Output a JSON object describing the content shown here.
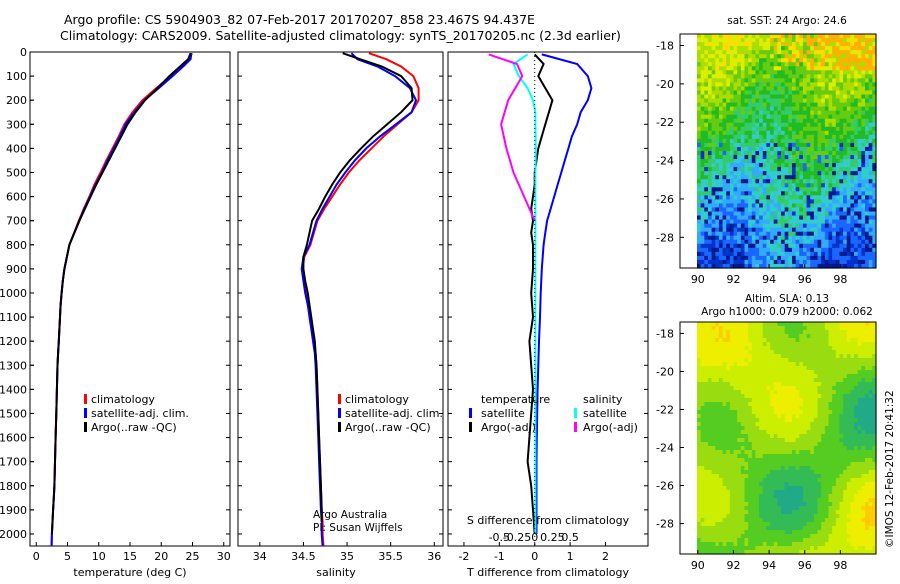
{
  "header": {
    "line1": "Argo profile: CS 5904903_82 07-Feb-2017 20170207_858 23.467S 94.437E",
    "line2": "Climatology: CARS2009. Satellite-adjusted climatology: synTS_20170205.nc (2.3d earlier)"
  },
  "colors": {
    "climatology": "#ff0000",
    "satellite_adj": "#0000ff",
    "argo": "#000000",
    "salinity_satellite": "#00ffff",
    "salinity_argo": "#ff00ff"
  },
  "chart_data": [
    {
      "type": "line",
      "panel": "temperature",
      "xlabel": "temperature (deg C)",
      "ylabel": "",
      "xlim": [
        -1,
        31
      ],
      "ylim": [
        2050,
        0
      ],
      "xticks": [
        "0",
        "5",
        "10",
        "15",
        "20",
        "25",
        "30"
      ],
      "yticks": [
        "0",
        "100",
        "200",
        "300",
        "400",
        "500",
        "600",
        "700",
        "800",
        "900",
        "1000",
        "1100",
        "1200",
        "1300",
        "1400",
        "1500",
        "1600",
        "1700",
        "1800",
        "1900",
        "2000"
      ],
      "legend": [
        "climatology",
        "satellite-adj. clim.",
        "Argo(..raw -QC)"
      ],
      "series": [
        {
          "name": "climatology",
          "color": "#ff0000",
          "x": [
            24.9,
            24.5,
            23.2,
            21.5,
            19.2,
            17,
            15.4,
            14.1,
            13.2,
            12.2,
            11.2,
            10.3,
            9.3,
            8.5,
            7.6,
            6.8,
            5.3,
            4.9,
            4.5,
            4.25,
            4.05,
            3.9,
            3.8,
            3.7,
            3.6,
            3.5,
            3.4,
            3.3,
            3.2,
            3.1,
            3.0,
            2.9,
            2.8,
            2.7,
            2.6,
            2.5,
            2.45
          ],
          "y": [
            5,
            30,
            60,
            100,
            150,
            200,
            250,
            300,
            350,
            400,
            450,
            500,
            550,
            600,
            650,
            700,
            800,
            850,
            900,
            950,
            1000,
            1050,
            1100,
            1150,
            1200,
            1250,
            1300,
            1400,
            1500,
            1600,
            1700,
            1800,
            1850,
            1900,
            1950,
            2000,
            2050
          ]
        },
        {
          "name": "satellite-adj. clim.",
          "color": "#0000ff",
          "x": [
            24.8,
            24.7,
            23.5,
            21.8,
            19.6,
            17.3,
            15.7,
            14.3,
            13.4,
            12.4,
            11.4,
            10.5,
            9.5,
            8.6,
            7.7,
            6.9,
            5.3,
            4.9,
            4.5,
            4.25,
            4.05,
            3.9,
            3.8,
            3.7,
            3.6,
            3.5,
            3.4,
            3.3,
            3.2,
            3.1,
            3.0,
            2.9,
            2.8,
            2.7,
            2.6,
            2.5,
            2.45
          ],
          "y": [
            5,
            30,
            60,
            100,
            150,
            200,
            250,
            300,
            350,
            400,
            450,
            500,
            550,
            600,
            650,
            700,
            800,
            850,
            900,
            950,
            1000,
            1050,
            1100,
            1150,
            1200,
            1250,
            1300,
            1400,
            1500,
            1600,
            1700,
            1800,
            1850,
            1900,
            1950,
            2000,
            2050
          ]
        },
        {
          "name": "Argo(..raw -QC)",
          "color": "#000000",
          "x": [
            24.7,
            24.3,
            23.0,
            21.3,
            19.4,
            17.4,
            15.9,
            14.6,
            13.6,
            12.6,
            11.6,
            10.6,
            9.6,
            8.7,
            7.8,
            6.9,
            5.3,
            4.9,
            4.5,
            4.25,
            4.05,
            3.9,
            3.8,
            3.7,
            3.6,
            3.5,
            3.4,
            3.3,
            3.2,
            3.1,
            3.0,
            2.9,
            2.8,
            2.7,
            2.6,
            2.5
          ],
          "y": [
            5,
            30,
            60,
            100,
            150,
            200,
            250,
            300,
            350,
            400,
            450,
            500,
            550,
            600,
            650,
            700,
            800,
            850,
            900,
            950,
            1000,
            1050,
            1100,
            1150,
            1200,
            1250,
            1300,
            1400,
            1500,
            1600,
            1700,
            1800,
            1850,
            1900,
            1950,
            2000
          ]
        }
      ]
    },
    {
      "type": "line",
      "panel": "salinity",
      "xlabel": "salinity",
      "ylabel": "",
      "xlim": [
        33.75,
        36.1
      ],
      "ylim": [
        2050,
        0
      ],
      "xticks": [
        "34",
        "34.5",
        "35",
        "35.5",
        "36"
      ],
      "legend": [
        "climatology",
        "satellite-adj. clim.",
        "Argo(..raw -QC)"
      ],
      "series": [
        {
          "name": "climatology",
          "color": "#ff0000",
          "x": [
            35.25,
            35.45,
            35.62,
            35.76,
            35.82,
            35.82,
            35.74,
            35.58,
            35.42,
            35.28,
            35.14,
            35.02,
            34.92,
            34.83,
            34.74,
            34.66,
            34.58,
            34.51,
            34.49,
            34.51,
            34.53,
            34.56,
            34.58,
            34.6,
            34.62,
            34.64,
            34.65,
            34.66,
            34.67,
            34.68,
            34.69,
            34.7,
            34.71,
            34.72,
            34.72,
            34.73
          ],
          "y": [
            5,
            30,
            60,
            100,
            150,
            200,
            250,
            300,
            350,
            400,
            450,
            500,
            550,
            600,
            650,
            700,
            800,
            850,
            900,
            950,
            1000,
            1050,
            1100,
            1150,
            1200,
            1250,
            1300,
            1400,
            1500,
            1600,
            1700,
            1800,
            1900,
            1950,
            2000,
            2050
          ]
        },
        {
          "name": "satellite-adj. clim.",
          "color": "#0000ff",
          "x": [
            35.05,
            35.12,
            35.35,
            35.55,
            35.72,
            35.79,
            35.74,
            35.56,
            35.38,
            35.22,
            35.09,
            34.98,
            34.88,
            34.8,
            34.72,
            34.65,
            34.57,
            34.5,
            34.48,
            34.5,
            34.52,
            34.55,
            34.57,
            34.59,
            34.61,
            34.63,
            34.64,
            34.65,
            34.66,
            34.67,
            34.68,
            34.69,
            34.7,
            34.71,
            34.71,
            34.72
          ],
          "y": [
            5,
            30,
            60,
            100,
            150,
            200,
            250,
            300,
            350,
            400,
            450,
            500,
            550,
            600,
            650,
            700,
            800,
            850,
            900,
            950,
            1000,
            1050,
            1100,
            1150,
            1200,
            1250,
            1300,
            1400,
            1500,
            1600,
            1700,
            1800,
            1900,
            1950,
            2000,
            2050
          ]
        },
        {
          "name": "Argo(..raw -QC)",
          "color": "#000000",
          "x": [
            34.95,
            35.15,
            35.4,
            35.62,
            35.74,
            35.75,
            35.62,
            35.46,
            35.3,
            35.16,
            35.03,
            34.92,
            34.83,
            34.75,
            34.68,
            34.6,
            34.54,
            34.5,
            34.5,
            34.52,
            34.55,
            34.57,
            34.59,
            34.61,
            34.63,
            34.64,
            34.65,
            34.66,
            34.67,
            34.68,
            34.69,
            34.7,
            34.71,
            34.71
          ],
          "y": [
            5,
            30,
            60,
            100,
            150,
            200,
            250,
            300,
            350,
            400,
            450,
            500,
            550,
            600,
            650,
            700,
            800,
            850,
            900,
            950,
            1000,
            1050,
            1100,
            1150,
            1200,
            1250,
            1300,
            1400,
            1500,
            1600,
            1700,
            1800,
            1900,
            1950
          ]
        }
      ]
    },
    {
      "type": "line",
      "panel": "difference",
      "xlabel": "T difference from climatology",
      "xlabel_top": "S difference from climatology",
      "ylabel": "",
      "xlim": [
        -2.45,
        3.2
      ],
      "ylim": [
        2050,
        0
      ],
      "xticks": [
        "-2",
        "-1",
        "0",
        "1",
        "2"
      ],
      "sticks": [
        "-0.5",
        "-0.25",
        "0",
        "0.25",
        "0.5"
      ],
      "legend_titles": [
        "temperature",
        "salinity"
      ],
      "legend": [
        "satellite",
        "Argo(-adj)",
        "satellite",
        "Argo(-adj)"
      ],
      "series": [
        {
          "name": "satellite",
          "color": "#0000ff",
          "x": [
            0.2,
            1.2,
            1.5,
            1.6,
            1.5,
            1.3,
            1.2,
            1.05,
            0.95,
            0.85,
            0.75,
            0.65,
            0.55,
            0.45,
            0.35,
            0.3,
            0.25,
            0.2,
            0.17,
            0.15,
            0.12,
            0.1,
            0.08,
            0.06,
            0.05,
            0.05,
            0.05,
            0.05
          ],
          "y": [
            10,
            50,
            100,
            150,
            200,
            250,
            300,
            350,
            400,
            450,
            500,
            550,
            600,
            650,
            700,
            750,
            800,
            900,
            1000,
            1100,
            1200,
            1300,
            1400,
            1600,
            1700,
            1800,
            1900,
            2000
          ]
        },
        {
          "name": "Argo(-adj)",
          "color": "#000000",
          "x": [
            0,
            0.25,
            0.1,
            0.3,
            0.5,
            0.4,
            0.3,
            0.2,
            0.1,
            0.05,
            0,
            0,
            -0.05,
            -0.1,
            -0.05,
            -0.1,
            -0.05,
            -0.05,
            -0.1,
            -0.05,
            -0.15,
            -0.1,
            -0.05,
            -0.1,
            -0.15,
            -0.2,
            -0.1,
            -0.05,
            0
          ],
          "y": [
            10,
            50,
            100,
            150,
            200,
            250,
            300,
            350,
            400,
            450,
            500,
            550,
            600,
            650,
            700,
            750,
            800,
            900,
            1000,
            1100,
            1200,
            1300,
            1400,
            1500,
            1600,
            1700,
            1800,
            1900,
            2000
          ]
        },
        {
          "name": "satellite",
          "color": "#00ffff",
          "x": [
            -0.2,
            -0.6,
            -0.45,
            -0.2,
            -0.05,
            0.02,
            0.02,
            0.03,
            0.02,
            0.02,
            0.02,
            0.02,
            0.02,
            0.02,
            0.02,
            0.02,
            0.02
          ],
          "y": [
            10,
            50,
            100,
            150,
            200,
            250,
            300,
            400,
            500,
            700,
            900,
            1100,
            1300,
            1500,
            1700,
            1900,
            2000
          ]
        },
        {
          "name": "Argo(-adj)",
          "color": "#ff00ff",
          "x": [
            -1.3,
            -0.5,
            -0.35,
            -0.75,
            -0.95,
            -0.8,
            -0.6,
            -0.45,
            -0.3,
            -0.15,
            0
          ],
          "y": [
            10,
            50,
            100,
            200,
            300,
            400,
            500,
            550,
            600,
            650,
            700
          ]
        }
      ]
    }
  ],
  "maps": {
    "sst": {
      "title": "sat. SST: 24 Argo: 24.6",
      "xticks": [
        "90",
        "92",
        "94",
        "96",
        "98"
      ],
      "yticks": [
        "-18",
        "-20",
        "-22",
        "-24",
        "-26",
        "-28"
      ],
      "palette": [
        "#001a8c",
        "#0033cc",
        "#1a66ff",
        "#33aaff",
        "#33cccc",
        "#33cc66",
        "#22bb22",
        "#66cc11",
        "#aadd00",
        "#ddee00",
        "#ffdd00",
        "#ffb000"
      ]
    },
    "sla": {
      "title_line1": "Altim. SLA: 0.13",
      "title_line2": "Argo h1000: 0.079 h2000: 0.062",
      "xticks": [
        "90",
        "92",
        "94",
        "96",
        "98"
      ],
      "yticks": [
        "-18",
        "-20",
        "-22",
        "-24",
        "-26",
        "-28"
      ],
      "palette": [
        "#22aa88",
        "#33bb55",
        "#55cc22",
        "#99dd11",
        "#ccee00",
        "#eeee00",
        "#ffcc00",
        "#ffaa00"
      ]
    }
  },
  "annotations": {
    "credit1": "Argo Australia",
    "credit2": "PI: Susan Wijffels",
    "stamp": "©IMOS 12-Feb-2017 20:41:32"
  }
}
